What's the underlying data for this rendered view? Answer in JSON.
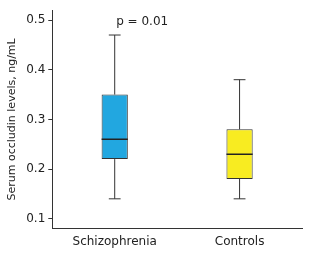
{
  "chart_data": {
    "type": "boxplot",
    "y_label": "Serum occludin levels, ng/mL",
    "annotation": "p = 0.01",
    "categories": [
      "Schizophrenia",
      "Controls"
    ],
    "boxes": [
      {
        "min": 0.14,
        "q1": 0.22,
        "median": 0.26,
        "q3": 0.35,
        "max": 0.47
      },
      {
        "min": 0.14,
        "q1": 0.18,
        "median": 0.23,
        "q3": 0.28,
        "max": 0.38
      }
    ],
    "colors": [
      "#22a7e0",
      "#f8ec21"
    ],
    "ylim": [
      0.08,
      0.52
    ],
    "yticks": [
      0.1,
      0.2,
      0.3,
      0.4,
      0.5
    ],
    "grid": false
  }
}
